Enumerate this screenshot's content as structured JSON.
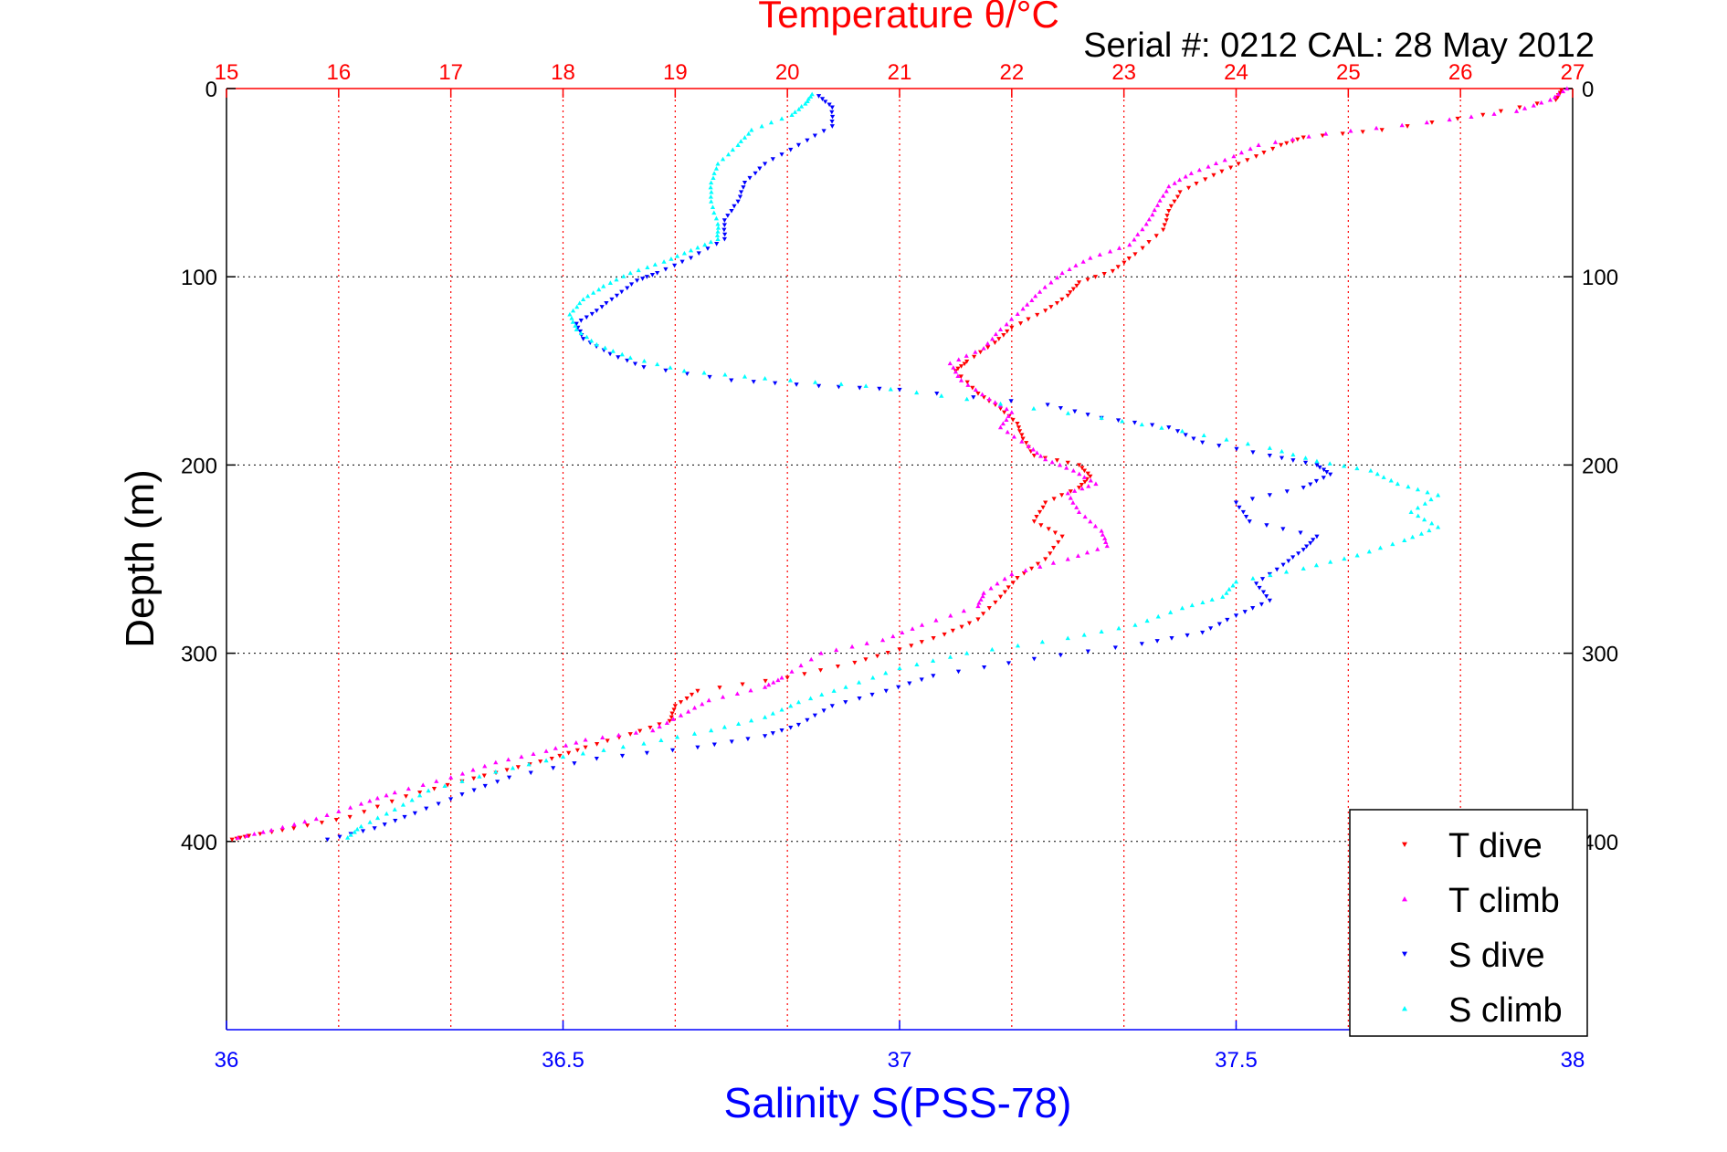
{
  "chart_data": {
    "type": "scatter",
    "title": "Temperature θ/°C",
    "subtitle": "Serial #: 0212  CAL: 28 May 2012",
    "ylabel": "Depth (m)",
    "xlabel": "Salinity S(PSS-78)",
    "ylim": [
      500,
      0
    ],
    "temperature_axis": {
      "range": [
        15,
        27
      ],
      "ticks": [
        "15",
        "16",
        "17",
        "18",
        "19",
        "20",
        "21",
        "22",
        "23",
        "24",
        "25",
        "26",
        "27"
      ]
    },
    "salinity_axis": {
      "range": [
        36,
        38
      ],
      "ticks": [
        "36",
        "36.5",
        "37",
        "37.5",
        "38"
      ]
    },
    "depth_ticks": [
      "0",
      "100",
      "200",
      "300",
      "400"
    ],
    "grid": true,
    "legend_position": "bottom-right",
    "colors": {
      "t_dive": "#ff0000",
      "t_climb": "#ff00ff",
      "s_dive": "#0000ff",
      "s_climb": "#00ffff",
      "temperature_axis": "#ff0000",
      "salinity_axis": "#0000ff"
    },
    "series": [
      {
        "name": "T dive",
        "variable": "temperature",
        "marker": "triangle-down",
        "points": [
          [
            26.9,
            1
          ],
          [
            26.85,
            6
          ],
          [
            26.2,
            14
          ],
          [
            25.3,
            22
          ],
          [
            24.6,
            26
          ],
          [
            24.4,
            30
          ],
          [
            24.1,
            38
          ],
          [
            23.8,
            46
          ],
          [
            23.5,
            55
          ],
          [
            23.4,
            65
          ],
          [
            23.35,
            75
          ],
          [
            23.1,
            88
          ],
          [
            22.9,
            97
          ],
          [
            22.6,
            103
          ],
          [
            22.5,
            110
          ],
          [
            22.3,
            118
          ],
          [
            22,
            127
          ],
          [
            21.85,
            135
          ],
          [
            21.6,
            145
          ],
          [
            21.5,
            150
          ],
          [
            21.7,
            162
          ],
          [
            21.9,
            170
          ],
          [
            22.05,
            178
          ],
          [
            22.1,
            186
          ],
          [
            22.2,
            195
          ],
          [
            22.6,
            200
          ],
          [
            22.7,
            206
          ],
          [
            22.6,
            212
          ],
          [
            22.3,
            220
          ],
          [
            22.2,
            230
          ],
          [
            22.45,
            238
          ],
          [
            22.3,
            250
          ],
          [
            22.05,
            260
          ],
          [
            21.9,
            270
          ],
          [
            21.7,
            282
          ],
          [
            21.4,
            290
          ],
          [
            21,
            298
          ],
          [
            20.6,
            305
          ],
          [
            20,
            313
          ],
          [
            19.2,
            320
          ],
          [
            19,
            328
          ],
          [
            18.95,
            336
          ],
          [
            18.6,
            343
          ],
          [
            18.2,
            350
          ],
          [
            17.9,
            356
          ],
          [
            17.5,
            362
          ],
          [
            17.1,
            368
          ],
          [
            16.6,
            376
          ],
          [
            16.1,
            387
          ],
          [
            15.6,
            393
          ],
          [
            15.2,
            397
          ],
          [
            15.05,
            399
          ]
        ]
      },
      {
        "name": "T climb",
        "variable": "temperature",
        "marker": "triangle-up",
        "points": [
          [
            26.95,
            0
          ],
          [
            26.8,
            6
          ],
          [
            26.5,
            12
          ],
          [
            25.7,
            18
          ],
          [
            24.8,
            24
          ],
          [
            24.2,
            30
          ],
          [
            23.9,
            38
          ],
          [
            23.6,
            45
          ],
          [
            23.4,
            52
          ],
          [
            23.3,
            62
          ],
          [
            23.2,
            72
          ],
          [
            23.05,
            83
          ],
          [
            22.7,
            90
          ],
          [
            22.45,
            98
          ],
          [
            22.25,
            108
          ],
          [
            22.1,
            117
          ],
          [
            21.9,
            128
          ],
          [
            21.75,
            138
          ],
          [
            21.45,
            146
          ],
          [
            21.55,
            155
          ],
          [
            21.8,
            165
          ],
          [
            22,
            172
          ],
          [
            21.9,
            180
          ],
          [
            22.15,
            190
          ],
          [
            22.3,
            197
          ],
          [
            22.55,
            203
          ],
          [
            22.75,
            210
          ],
          [
            22.5,
            215
          ],
          [
            22.6,
            225
          ],
          [
            22.8,
            235
          ],
          [
            22.85,
            243
          ],
          [
            22.5,
            250
          ],
          [
            22,
            258
          ],
          [
            21.75,
            268
          ],
          [
            21.7,
            275
          ],
          [
            21.2,
            285
          ],
          [
            20.85,
            293
          ],
          [
            20.3,
            300
          ],
          [
            19.95,
            313
          ],
          [
            19.8,
            318
          ],
          [
            19.3,
            325
          ],
          [
            19.05,
            333
          ],
          [
            18.8,
            341
          ],
          [
            18.2,
            346
          ],
          [
            17.85,
            352
          ],
          [
            17.4,
            358
          ],
          [
            17,
            366
          ],
          [
            16.5,
            374
          ],
          [
            16.2,
            380
          ],
          [
            15.8,
            388
          ],
          [
            15.4,
            394
          ],
          [
            15.1,
            398
          ]
        ]
      },
      {
        "name": "S dive",
        "variable": "salinity",
        "marker": "triangle-down",
        "points": [
          [
            36.88,
            4
          ],
          [
            36.9,
            10
          ],
          [
            36.9,
            20
          ],
          [
            36.85,
            30
          ],
          [
            36.8,
            40
          ],
          [
            36.77,
            50
          ],
          [
            36.76,
            60
          ],
          [
            36.74,
            70
          ],
          [
            36.74,
            80
          ],
          [
            36.69,
            90
          ],
          [
            36.64,
            98
          ],
          [
            36.61,
            102
          ],
          [
            36.58,
            110
          ],
          [
            36.55,
            118
          ],
          [
            36.52,
            125
          ],
          [
            36.53,
            133
          ],
          [
            36.57,
            141
          ],
          [
            36.62,
            148
          ],
          [
            36.75,
            155
          ],
          [
            36.88,
            158
          ],
          [
            37,
            160
          ],
          [
            37.22,
            168
          ],
          [
            37.3,
            175
          ],
          [
            37.4,
            180
          ],
          [
            37.45,
            188
          ],
          [
            37.55,
            195
          ],
          [
            37.62,
            200
          ],
          [
            37.64,
            205
          ],
          [
            37.6,
            212
          ],
          [
            37.5,
            220
          ],
          [
            37.52,
            230
          ],
          [
            37.62,
            238
          ],
          [
            37.6,
            245
          ],
          [
            37.57,
            253
          ],
          [
            37.53,
            263
          ],
          [
            37.55,
            272
          ],
          [
            37.5,
            280
          ],
          [
            37.45,
            289
          ],
          [
            37.36,
            295
          ],
          [
            37.2,
            303
          ],
          [
            37.05,
            312
          ],
          [
            36.98,
            320
          ],
          [
            36.9,
            328
          ],
          [
            36.85,
            338
          ],
          [
            36.8,
            344
          ],
          [
            36.7,
            350
          ],
          [
            36.55,
            356
          ],
          [
            36.42,
            366
          ],
          [
            36.35,
            375
          ],
          [
            36.28,
            385
          ],
          [
            36.22,
            393
          ],
          [
            36.15,
            399
          ]
        ]
      },
      {
        "name": "S climb",
        "variable": "salinity",
        "marker": "triangle-up",
        "points": [
          [
            36.87,
            3
          ],
          [
            36.86,
            8
          ],
          [
            36.84,
            14
          ],
          [
            36.78,
            22
          ],
          [
            36.76,
            30
          ],
          [
            36.73,
            40
          ],
          [
            36.72,
            50
          ],
          [
            36.72,
            60
          ],
          [
            36.73,
            72
          ],
          [
            36.73,
            80
          ],
          [
            36.69,
            86
          ],
          [
            36.65,
            92
          ],
          [
            36.6,
            98
          ],
          [
            36.56,
            105
          ],
          [
            36.53,
            112
          ],
          [
            36.51,
            120
          ],
          [
            36.52,
            128
          ],
          [
            36.55,
            136
          ],
          [
            36.6,
            143
          ],
          [
            36.68,
            150
          ],
          [
            36.8,
            154
          ],
          [
            36.95,
            158
          ],
          [
            37.1,
            165
          ],
          [
            37.3,
            175
          ],
          [
            37.42,
            182
          ],
          [
            37.55,
            191
          ],
          [
            37.62,
            198
          ],
          [
            37.7,
            203
          ],
          [
            37.74,
            210
          ],
          [
            37.8,
            216
          ],
          [
            37.76,
            225
          ],
          [
            37.8,
            233
          ],
          [
            37.75,
            240
          ],
          [
            37.68,
            248
          ],
          [
            37.6,
            255
          ],
          [
            37.5,
            262
          ],
          [
            37.48,
            270
          ],
          [
            37.42,
            276
          ],
          [
            37.35,
            285
          ],
          [
            37.25,
            292
          ],
          [
            37.1,
            300
          ],
          [
            37,
            308
          ],
          [
            36.92,
            318
          ],
          [
            36.85,
            326
          ],
          [
            36.8,
            334
          ],
          [
            36.72,
            341
          ],
          [
            36.62,
            348
          ],
          [
            36.5,
            355
          ],
          [
            36.4,
            363
          ],
          [
            36.3,
            373
          ],
          [
            36.25,
            383
          ],
          [
            36.2,
            392
          ],
          [
            36.18,
            398
          ]
        ]
      }
    ]
  }
}
